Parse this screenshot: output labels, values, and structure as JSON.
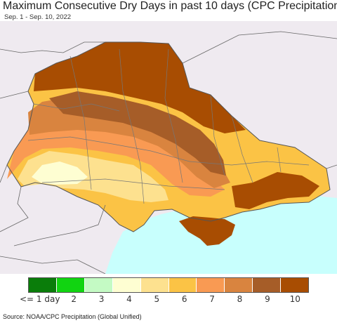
{
  "title": "Maximum Consecutive Dry Days in past 10 days (CPC Precipitation)",
  "subtitle": "Sep. 1 - Sep. 10, 2022",
  "source": "Source: NOAA/CPC Precipitation (Global Unified)",
  "legend": {
    "colors": [
      "#0a7d0a",
      "#11d411",
      "#c4fac4",
      "#fefed2",
      "#fde18f",
      "#fbc345",
      "#f99a53",
      "#d9843f",
      "#a65d28",
      "#a84d02"
    ],
    "labels": [
      "<= 1 day",
      "2",
      "3",
      "4",
      "5",
      "6",
      "7",
      "8",
      "9",
      "10"
    ]
  },
  "map": {
    "land_color": "#efeaf0",
    "sea_color": "#c8fffd",
    "border_color": "#777777"
  }
}
